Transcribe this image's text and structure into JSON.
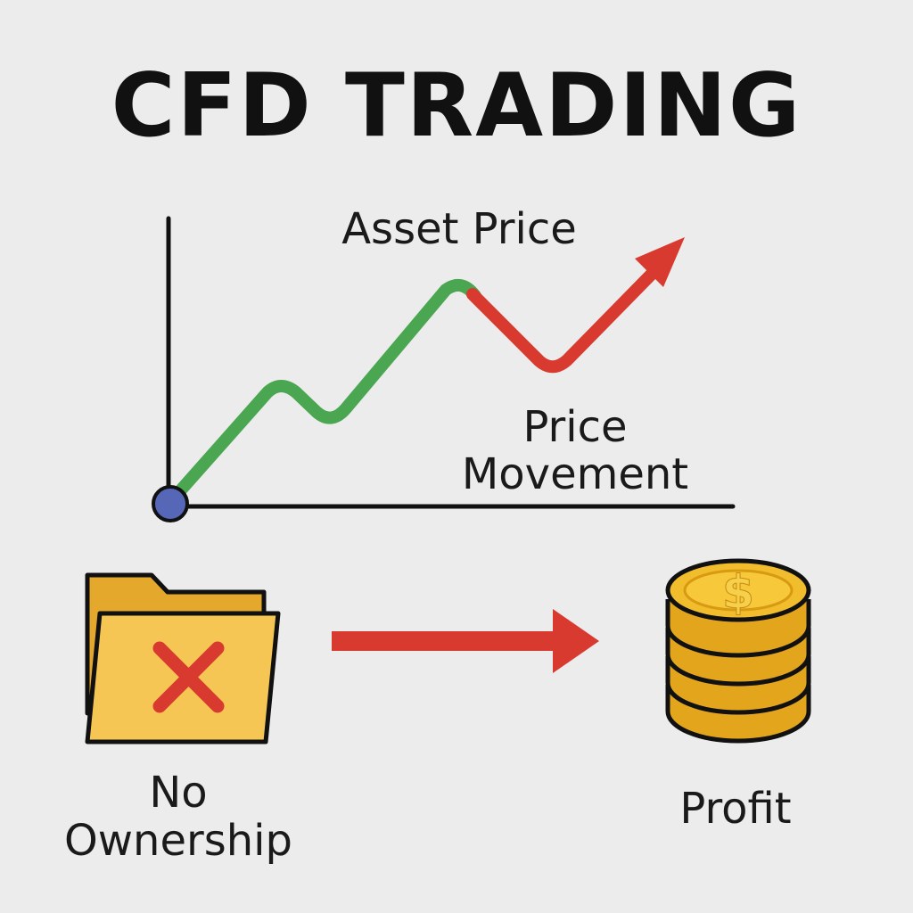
{
  "title": "CFD TRADING",
  "chart": {
    "label": "Asset Price",
    "movement_label_line1": "Price",
    "movement_label_line2": "Movement"
  },
  "bottom": {
    "left_label_line1": "No",
    "left_label_line2": "Ownership",
    "right_label": "Profit",
    "coin_symbol": "$"
  },
  "colors": {
    "background": "#ececec",
    "rise": "#4aa650",
    "fall": "#d93a30",
    "origin": "#5767b8",
    "folder": "#f4b93a",
    "coin": "#e9ab1d"
  },
  "icons": [
    "folder-icon",
    "x-mark-icon",
    "arrow-right-icon",
    "coin-stack-icon",
    "dollar-icon"
  ]
}
